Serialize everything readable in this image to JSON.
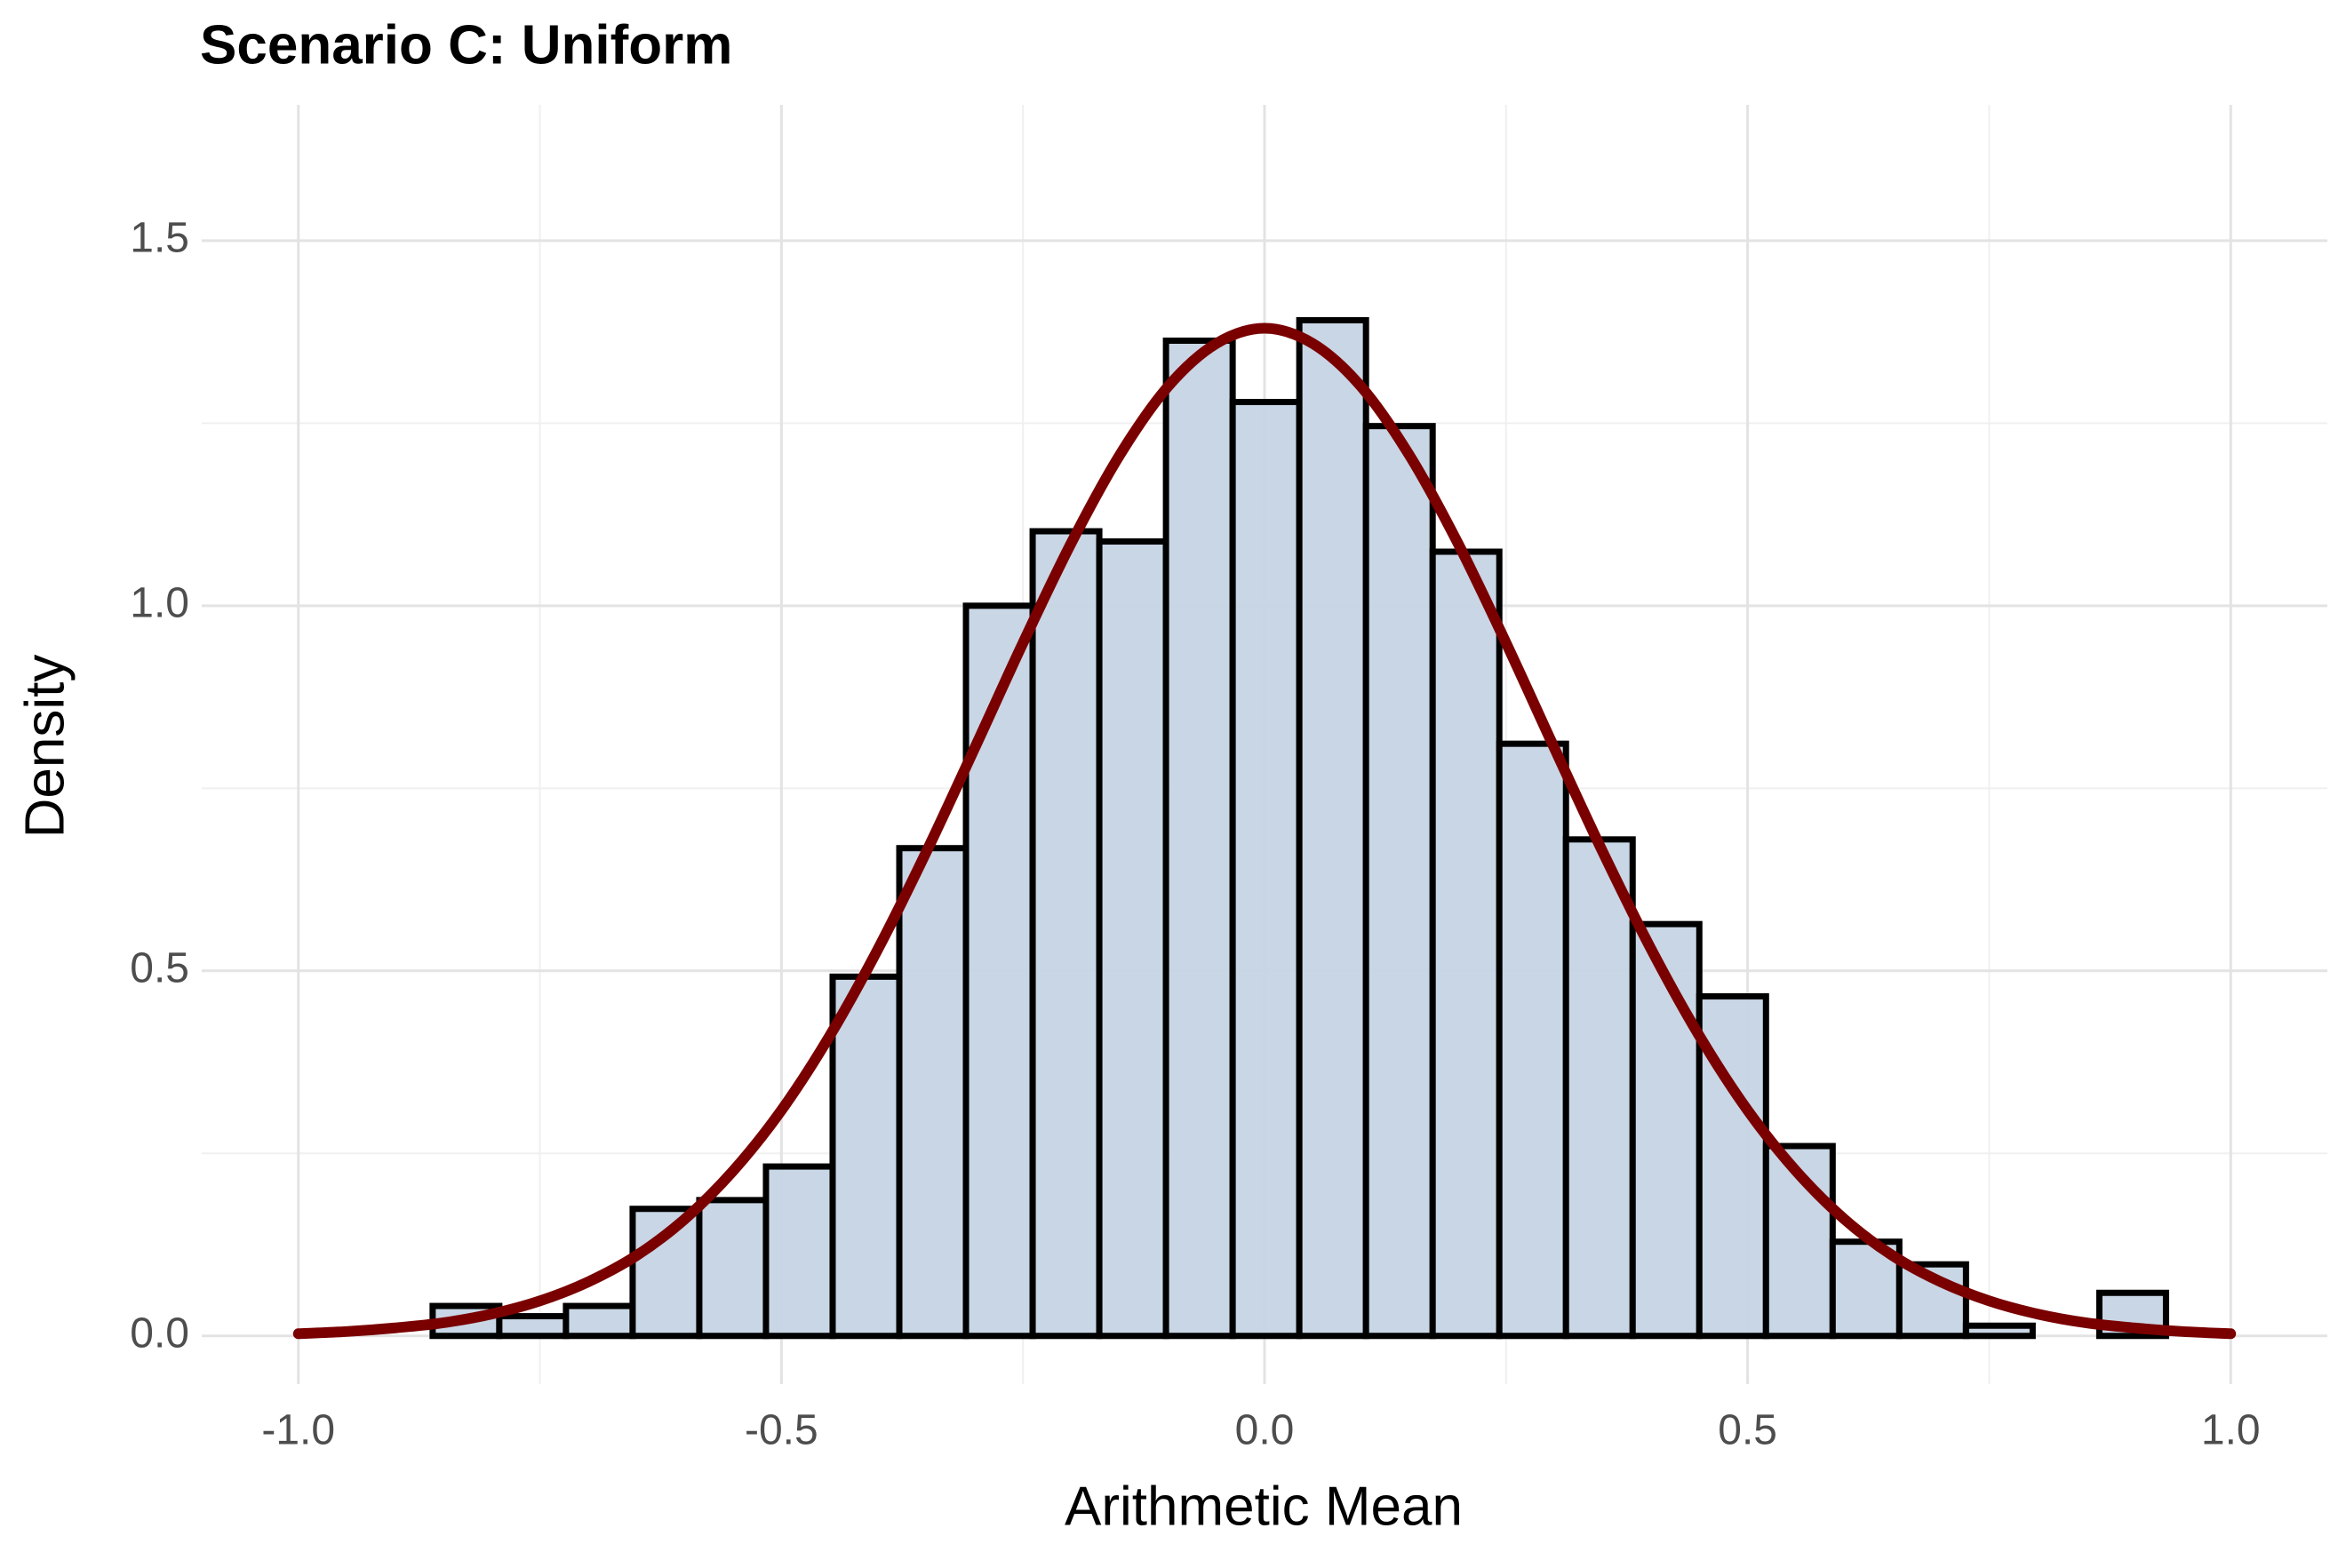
{
  "chart_data": {
    "type": "histogram",
    "title": "Scenario C: Uniform",
    "x_label": "Arithmetic Mean",
    "y_label": "Density",
    "bins": [
      -0.861,
      -0.792,
      -0.723,
      -0.654,
      -0.585,
      -0.516,
      -0.447,
      -0.378,
      -0.309,
      -0.24,
      -0.171,
      -0.102,
      -0.033,
      0.036,
      0.105,
      0.174,
      0.243,
      0.312,
      0.381,
      0.45,
      0.519,
      0.588,
      0.657,
      0.726,
      0.795,
      0.864,
      0.933
    ],
    "values": [
      0.041,
      0.027,
      0.041,
      0.174,
      0.186,
      0.232,
      0.492,
      0.668,
      1.0,
      1.102,
      1.088,
      1.363,
      1.279,
      1.391,
      1.246,
      1.074,
      0.811,
      0.68,
      0.564,
      0.465,
      0.26,
      0.129,
      0.098,
      0.014,
      0,
      0.059
    ],
    "color": "#c6d4e4",
    "edge_color": "#000000",
    "curve": {
      "color": "#7a0000",
      "x": [
        -1,
        -0.95,
        -0.9,
        -0.85,
        -0.8,
        -0.75,
        -0.7,
        -0.65,
        -0.6,
        -0.55,
        -0.5,
        -0.45,
        -0.4,
        -0.35,
        -0.3,
        -0.25,
        -0.2,
        -0.15,
        -0.1,
        -0.05,
        0,
        0.05,
        0.1,
        0.15,
        0.2,
        0.25,
        0.3,
        0.35,
        0.4,
        0.45,
        0.5,
        0.55,
        0.6,
        0.65,
        0.7,
        0.75,
        0.8,
        0.85,
        0.9,
        0.95,
        1
      ],
      "values": [
        0.003,
        0.006,
        0.011,
        0.018,
        0.03,
        0.048,
        0.074,
        0.11,
        0.16,
        0.226,
        0.309,
        0.411,
        0.53,
        0.663,
        0.805,
        0.949,
        1.086,
        1.206,
        1.3,
        1.359,
        1.38,
        1.359,
        1.3,
        1.206,
        1.086,
        0.949,
        0.805,
        0.663,
        0.53,
        0.411,
        0.309,
        0.226,
        0.16,
        0.11,
        0.074,
        0.048,
        0.03,
        0.018,
        0.011,
        0.006,
        0.003
      ]
    },
    "xlim": [
      -1.1,
      1.1
    ],
    "ylim": [
      -0.066,
      1.686
    ],
    "xticks": [
      {
        "value": -1,
        "label": "-1.0"
      },
      -0.5,
      {
        "value": 0,
        "label": "0.0"
      },
      0.5,
      {
        "value": 1,
        "label": "1.0"
      }
    ],
    "yticks": [
      {
        "value": 0,
        "label": "0.0"
      },
      0.5,
      {
        "value": 1,
        "label": "1.0"
      },
      1.5
    ],
    "grid": true
  }
}
